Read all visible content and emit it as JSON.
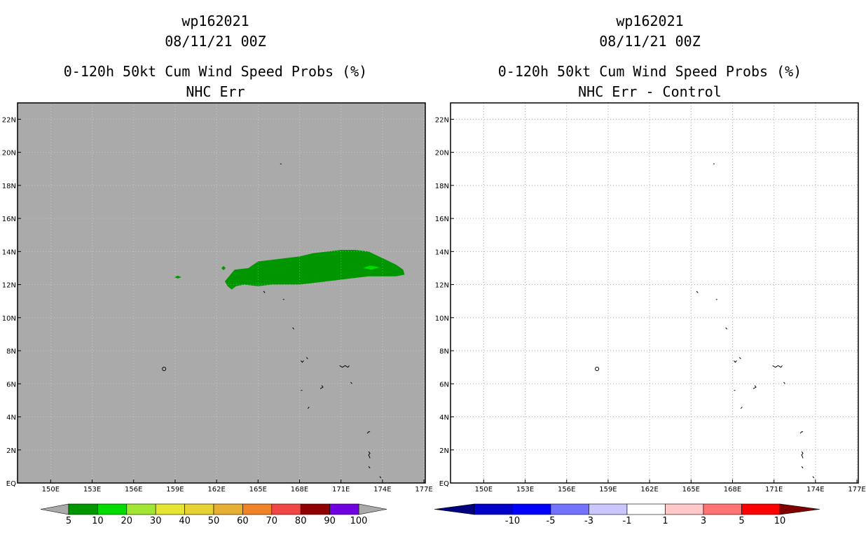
{
  "panels": [
    {
      "title_lines": [
        "wp162021",
        "08/11/21 00Z",
        "0-120h 50kt Cum Wind Speed Probs (%)",
        "NHC Err"
      ],
      "background_color": "#aaaaaa",
      "colorbar": {
        "labels": [
          "5",
          "10",
          "20",
          "30",
          "40",
          "50",
          "60",
          "70",
          "80",
          "90",
          "100"
        ],
        "colors": [
          "#009600",
          "#00dc00",
          "#a0e632",
          "#e6e632",
          "#e6d232",
          "#e6ae32",
          "#f08228",
          "#f04646",
          "#900000",
          "#7000e0"
        ],
        "extend_colors": [
          "#aaaaaa",
          "#aaaaaa"
        ]
      }
    },
    {
      "title_lines": [
        "wp162021",
        "08/11/21 00Z",
        "0-120h 50kt Cum Wind Speed Probs (%)",
        "NHC Err - Control"
      ],
      "background_color": "#ffffff",
      "colorbar": {
        "labels": [
          "-10",
          "-5",
          "-3",
          "-1",
          "1",
          "3",
          "5",
          "10"
        ],
        "colors": [
          "#0000c8",
          "#0000ff",
          "#7373ff",
          "#c8c8ff",
          "#ffffff",
          "#ffc8c8",
          "#ff7373",
          "#ff0000"
        ],
        "extend_colors": [
          "#000080",
          "#800000"
        ]
      }
    }
  ],
  "map": {
    "lat_labels": [
      "EQ",
      "2N",
      "4N",
      "6N",
      "8N",
      "10N",
      "12N",
      "14N",
      "16N",
      "18N",
      "20N",
      "22N"
    ],
    "lon_labels": [
      "150E",
      "153E",
      "156E",
      "159E",
      "162E",
      "165E",
      "168E",
      "171E",
      "174E",
      "177E"
    ],
    "prob_region_color": "#009600",
    "prob_core_color": "#00dc00"
  }
}
